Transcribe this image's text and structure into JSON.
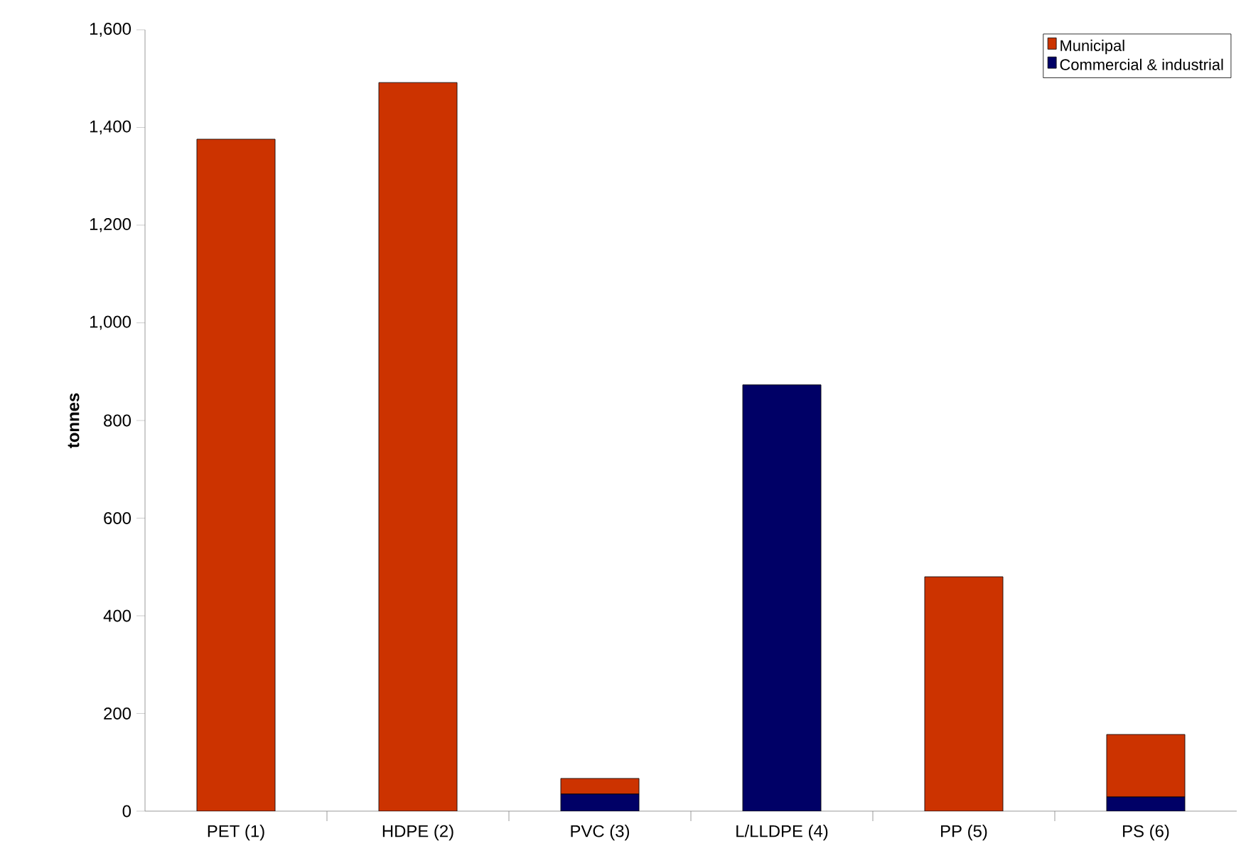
{
  "chart_data": {
    "type": "bar",
    "stacked": true,
    "ylabel": "tonnes",
    "categories": [
      "PET (1)",
      "HDPE (2)",
      "PVC (3)",
      "L/LLDPE (4)",
      "PP (5)",
      "PS (6)"
    ],
    "series": [
      {
        "name": "Commercial & industrial",
        "color": "#000066",
        "values": [
          0,
          0,
          35,
          873,
          0,
          29
        ]
      },
      {
        "name": "Municipal",
        "color": "#cc3300",
        "values": [
          1376,
          1492,
          32,
          0,
          480,
          128
        ]
      }
    ],
    "ylim": [
      0,
      1600
    ],
    "yticks": [
      0,
      {
        "value": 200,
        "label": "200"
      },
      {
        "value": 400,
        "label": "400"
      },
      {
        "value": 600,
        "label": "600"
      },
      {
        "value": 800,
        "label": "800"
      },
      {
        "value": 1000,
        "label": "1,000"
      },
      {
        "value": 1200,
        "label": "1,200"
      },
      {
        "value": 1400,
        "label": "1,400"
      },
      {
        "value": 1600,
        "label": "1,600"
      }
    ],
    "legend": "top right",
    "grid": false
  }
}
